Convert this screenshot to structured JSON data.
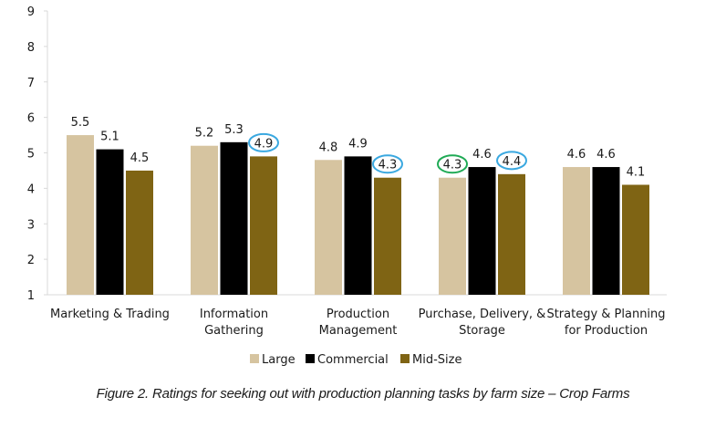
{
  "chart_data": {
    "type": "bar",
    "title": "",
    "xlabel": "",
    "ylabel": "",
    "ylim": [
      1,
      9
    ],
    "yticks": [
      1,
      2,
      3,
      4,
      5,
      6,
      7,
      8,
      9
    ],
    "grid": false,
    "legend_position": "bottom-center",
    "categories": [
      [
        "Marketing & Trading"
      ],
      [
        "Information",
        "Gathering"
      ],
      [
        "Production",
        "Management"
      ],
      [
        "Purchase, Delivery, &",
        "Storage"
      ],
      [
        "Strategy & Planning",
        "for Production"
      ]
    ],
    "series": [
      {
        "name": "Large",
        "color": "#d6c4a0",
        "values": [
          5.5,
          5.2,
          4.8,
          4.3,
          4.6
        ]
      },
      {
        "name": "Commercial",
        "color": "#000000",
        "values": [
          5.1,
          5.3,
          4.9,
          4.6,
          4.6
        ]
      },
      {
        "name": "Mid-Size",
        "color": "#7f6414",
        "values": [
          4.5,
          4.9,
          4.3,
          4.4,
          4.1
        ]
      }
    ],
    "highlights": [
      {
        "series": 2,
        "category": 1,
        "color": "#3aa8e0"
      },
      {
        "series": 2,
        "category": 2,
        "color": "#3aa8e0"
      },
      {
        "series": 0,
        "category": 3,
        "color": "#1faa55"
      },
      {
        "series": 2,
        "category": 3,
        "color": "#3aa8e0"
      }
    ]
  },
  "caption": "Figure 2. Ratings for seeking out with production planning tasks by farm size – Crop Farms"
}
